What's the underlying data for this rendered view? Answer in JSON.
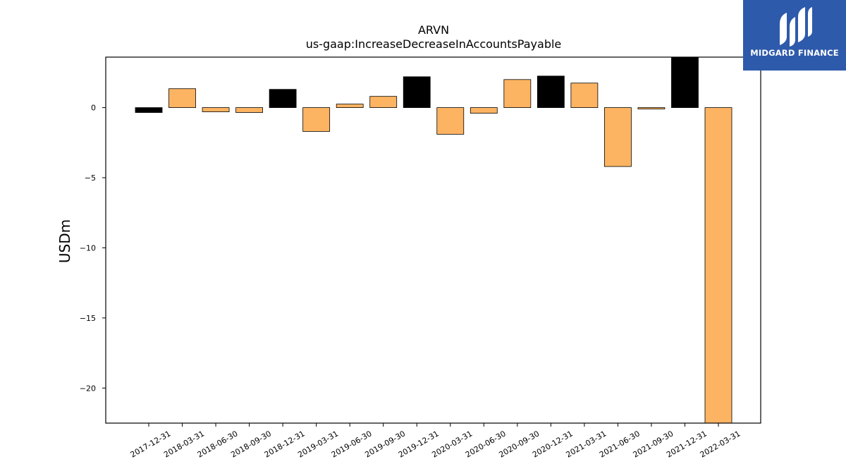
{
  "chart_data": {
    "type": "bar",
    "title": "ARVN",
    "subtitle": "us-gaap:IncreaseDecreaseInAccountsPayable",
    "ylabel": "USDm",
    "xlabel": "",
    "ylim": [
      -22.5,
      3.6
    ],
    "yticks": [
      0,
      -5,
      -10,
      -15,
      -20
    ],
    "ytick_labels": [
      "0",
      "−5",
      "−10",
      "−15",
      "−20"
    ],
    "grid": false,
    "categories": [
      "2017-12-31",
      "2018-03-31",
      "2018-06-30",
      "2018-09-30",
      "2018-12-31",
      "2019-03-31",
      "2019-06-30",
      "2019-09-30",
      "2019-12-31",
      "2020-03-31",
      "2020-06-30",
      "2020-09-30",
      "2020-12-31",
      "2021-03-31",
      "2021-06-30",
      "2021-09-30",
      "2021-12-31",
      "2022-03-31"
    ],
    "values": [
      -0.35,
      1.35,
      -0.3,
      -0.35,
      1.3,
      -1.7,
      0.25,
      0.8,
      2.2,
      -1.9,
      -0.4,
      2.0,
      2.25,
      1.75,
      -4.2,
      -0.1,
      3.6,
      -22.5
    ],
    "bar_colors": [
      "#000000",
      "#fdb462",
      "#fdb462",
      "#fdb462",
      "#000000",
      "#fdb462",
      "#fdb462",
      "#fdb462",
      "#000000",
      "#fdb462",
      "#fdb462",
      "#fdb462",
      "#000000",
      "#fdb462",
      "#fdb462",
      "#fdb462",
      "#000000",
      "#fdb462"
    ]
  },
  "logo": {
    "text": "MIDGARD FINANCE",
    "background": "#2e5aab",
    "mark_icon": "midgard-logo-icon"
  }
}
